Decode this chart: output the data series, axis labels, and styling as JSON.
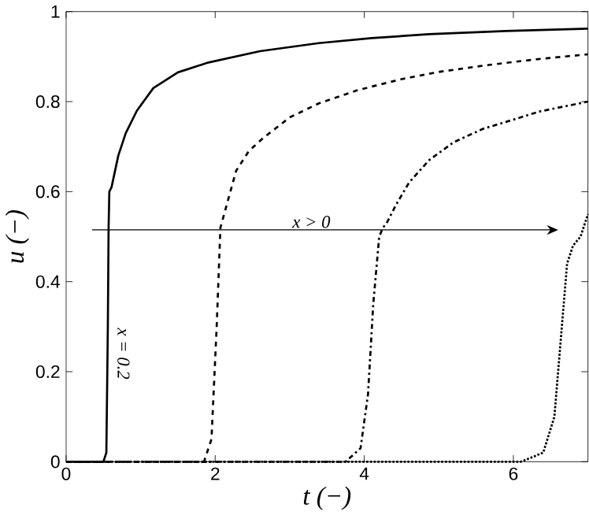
{
  "chart_data": {
    "type": "line",
    "xlabel": "t (−)",
    "ylabel": "u (−)",
    "xlim": [
      0,
      7
    ],
    "ylim": [
      0,
      1
    ],
    "xticks": [
      0,
      2,
      4,
      6
    ],
    "yticks": [
      0,
      0.2,
      0.4,
      0.6,
      0.8,
      1
    ],
    "grid": false,
    "marker": "none",
    "series": [
      {
        "color": "#000000",
        "line_style": "solid",
        "x": [
          0,
          0.5,
          0.54,
          0.56,
          0.57,
          0.58,
          0.61,
          0.7,
          0.8,
          0.95,
          1.17,
          1.5,
          1.91,
          2.6,
          3.39,
          4.1,
          4.87,
          5.9,
          7
        ],
        "values": [
          0,
          0,
          0.02,
          0.3,
          0.52,
          0.6,
          0.61,
          0.68,
          0.73,
          0.78,
          0.83,
          0.865,
          0.887,
          0.912,
          0.93,
          0.941,
          0.95,
          0.957,
          0.962
        ]
      },
      {
        "color": "#000000",
        "line_style": "dashed",
        "x": [
          0,
          1.85,
          1.95,
          2.02,
          2.07,
          2.12,
          2.28,
          2.45,
          2.65,
          3,
          3.39,
          3.9,
          4.5,
          5,
          5.6,
          6.3,
          7
        ],
        "values": [
          0,
          0,
          0.05,
          0.3,
          0.52,
          0.55,
          0.646,
          0.69,
          0.72,
          0.765,
          0.796,
          0.825,
          0.85,
          0.866,
          0.88,
          0.894,
          0.905
        ]
      },
      {
        "color": "#000000",
        "line_style": "dashdot",
        "x": [
          0,
          3.75,
          3.95,
          4.05,
          4.12,
          4.2,
          4.25,
          4.3,
          4.43,
          4.6,
          4.87,
          5.2,
          5.6,
          6,
          6.35,
          7
        ],
        "values": [
          0,
          0,
          0.03,
          0.15,
          0.35,
          0.5,
          0.52,
          0.53,
          0.572,
          0.62,
          0.67,
          0.71,
          0.74,
          0.76,
          0.778,
          0.8
        ]
      },
      {
        "color": "#000000",
        "line_style": "dotted",
        "x": [
          0,
          6.1,
          6.4,
          6.55,
          6.65,
          6.72,
          6.8,
          6.9,
          7
        ],
        "values": [
          0,
          0,
          0.02,
          0.1,
          0.3,
          0.44,
          0.48,
          0.5,
          0.55
        ]
      }
    ],
    "annotations": [
      "x > 0",
      "x = 0.2"
    ]
  }
}
